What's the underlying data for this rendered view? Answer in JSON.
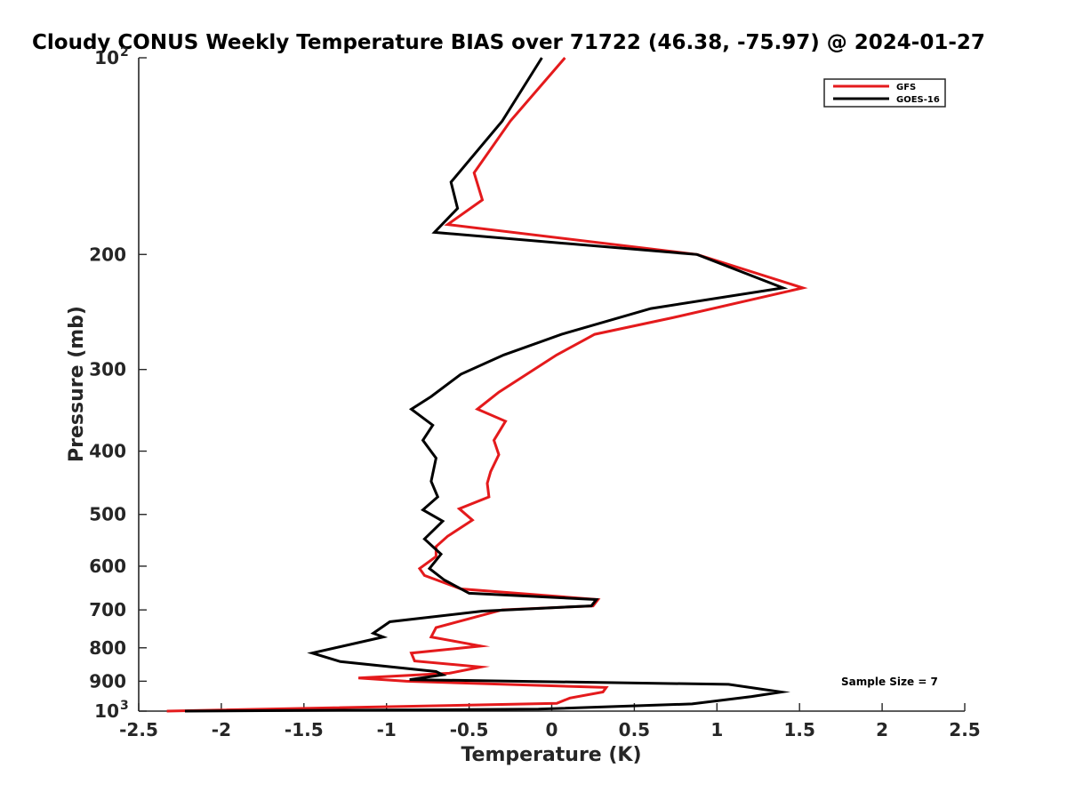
{
  "chart_data": {
    "type": "line",
    "title": "Cloudy CONUS Weekly Temperature BIAS over 71722 (46.38, -75.97) @ 2024-01-27",
    "xlabel": "Temperature (K)",
    "ylabel": "Pressure (mb)",
    "xlim": [
      -2.5,
      2.5
    ],
    "ylim": [
      100,
      1000
    ],
    "y_scale": "log",
    "y_reversed": true,
    "x_ticks": [
      -2.5,
      -2,
      -1.5,
      -1,
      -0.5,
      0,
      0.5,
      1,
      1.5,
      2,
      2.5
    ],
    "x_tick_labels": [
      "-2.5",
      "-2",
      "-1.5",
      "-1",
      "-0.5",
      "0",
      "0.5",
      "1",
      "1.5",
      "2",
      "2.5"
    ],
    "y_ticks": [
      {
        "value": 100,
        "base": "10",
        "exp": "2"
      },
      {
        "value": 200,
        "label": "200"
      },
      {
        "value": 300,
        "label": "300"
      },
      {
        "value": 400,
        "label": "400"
      },
      {
        "value": 500,
        "label": "500"
      },
      {
        "value": 600,
        "label": "600"
      },
      {
        "value": 700,
        "label": "700"
      },
      {
        "value": 800,
        "label": "800"
      },
      {
        "value": 900,
        "label": "900"
      },
      {
        "value": 1000,
        "base": "10",
        "exp": "3"
      }
    ],
    "legend_position": "top-right",
    "annotation": "Sample Size = 7",
    "series": [
      {
        "name": "GFS",
        "color": "#e41a1c",
        "points": [
          [
            0.08,
            100
          ],
          [
            -0.25,
            125
          ],
          [
            -0.47,
            150
          ],
          [
            -0.42,
            165
          ],
          [
            -0.63,
            180
          ],
          [
            0.88,
            200
          ],
          [
            1.52,
            225
          ],
          [
            0.73,
            250
          ],
          [
            0.26,
            265
          ],
          [
            0.03,
            285
          ],
          [
            -0.32,
            325
          ],
          [
            -0.45,
            345
          ],
          [
            -0.28,
            360
          ],
          [
            -0.35,
            385
          ],
          [
            -0.32,
            405
          ],
          [
            -0.37,
            430
          ],
          [
            -0.39,
            448
          ],
          [
            -0.38,
            470
          ],
          [
            -0.56,
            490
          ],
          [
            -0.48,
            510
          ],
          [
            -0.63,
            540
          ],
          [
            -0.7,
            560
          ],
          [
            -0.7,
            580
          ],
          [
            -0.8,
            605
          ],
          [
            -0.77,
            620
          ],
          [
            -0.55,
            650
          ],
          [
            0.28,
            675
          ],
          [
            0.25,
            690
          ],
          [
            -0.3,
            700
          ],
          [
            -0.7,
            745
          ],
          [
            -0.73,
            770
          ],
          [
            -0.55,
            785
          ],
          [
            -0.43,
            795
          ],
          [
            -0.85,
            815
          ],
          [
            -0.83,
            838
          ],
          [
            -0.43,
            856
          ],
          [
            -0.62,
            875
          ],
          [
            -1.17,
            890
          ],
          [
            -0.88,
            900
          ],
          [
            0.33,
            920
          ],
          [
            0.31,
            935
          ],
          [
            0.11,
            955
          ],
          [
            0.03,
            973
          ],
          [
            -2.33,
            1000
          ]
        ]
      },
      {
        "name": "GOES-16",
        "color": "#000000",
        "points": [
          [
            -0.06,
            100
          ],
          [
            -0.3,
            125
          ],
          [
            -0.61,
            155
          ],
          [
            -0.57,
            170
          ],
          [
            -0.71,
            185
          ],
          [
            0.88,
            200
          ],
          [
            1.4,
            225
          ],
          [
            0.6,
            242
          ],
          [
            0.06,
            265
          ],
          [
            -0.29,
            285
          ],
          [
            -0.55,
            305
          ],
          [
            -0.73,
            330
          ],
          [
            -0.85,
            345
          ],
          [
            -0.72,
            365
          ],
          [
            -0.78,
            385
          ],
          [
            -0.7,
            410
          ],
          [
            -0.73,
            445
          ],
          [
            -0.69,
            470
          ],
          [
            -0.78,
            492
          ],
          [
            -0.66,
            512
          ],
          [
            -0.77,
            545
          ],
          [
            -0.67,
            575
          ],
          [
            -0.74,
            605
          ],
          [
            -0.65,
            630
          ],
          [
            -0.5,
            660
          ],
          [
            0.27,
            675
          ],
          [
            0.24,
            690
          ],
          [
            -0.42,
            703
          ],
          [
            -0.98,
            730
          ],
          [
            -1.08,
            760
          ],
          [
            -1.02,
            770
          ],
          [
            -1.45,
            815
          ],
          [
            -1.28,
            840
          ],
          [
            -0.7,
            870
          ],
          [
            -0.66,
            880
          ],
          [
            -0.86,
            895
          ],
          [
            1.07,
            910
          ],
          [
            1.39,
            935
          ],
          [
            1.21,
            950
          ],
          [
            0.85,
            975
          ],
          [
            -0.08,
            993
          ],
          [
            -2.22,
            1000
          ]
        ]
      }
    ]
  }
}
